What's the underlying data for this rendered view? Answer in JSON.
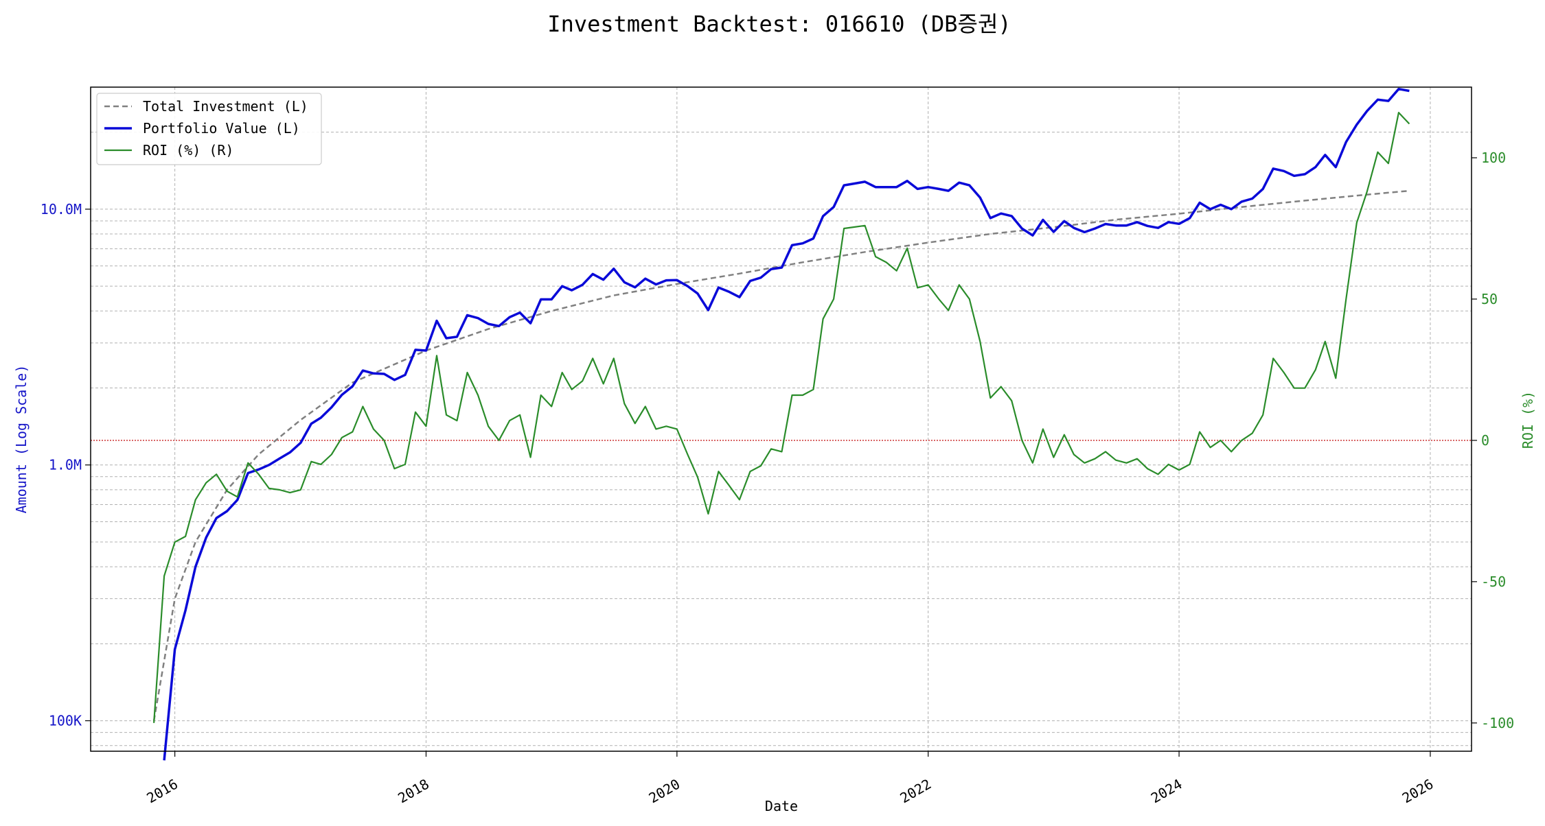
{
  "chart_data": {
    "type": "line",
    "title": "Investment Backtest: 016610 (DB증권)",
    "xlabel": "Date",
    "ylabel_left": "Amount (Log Scale)",
    "ylabel_right": "ROI (%)",
    "left_scale": "log",
    "left_ylim": [
      76000,
      30000000
    ],
    "right_ylim": [
      -110,
      125
    ],
    "xlim": [
      "2015-05-01",
      "2026-05-01"
    ],
    "x_ticks": [
      "2016",
      "2018",
      "2020",
      "2022",
      "2024",
      "2026"
    ],
    "left_ticks": [
      {
        "value": 100000,
        "label": "100K"
      },
      {
        "value": 1000000,
        "label": "1.0M"
      },
      {
        "value": 10000000,
        "label": "10.0M"
      }
    ],
    "right_ticks": [
      -100,
      -50,
      0,
      50,
      100
    ],
    "grid": true,
    "legend_position": "top-left",
    "reference_line": {
      "axis": "right",
      "value": 0,
      "style": "dotted",
      "color": "#cc3333"
    },
    "colors": {
      "total_investment": "#808080",
      "portfolio_value": "#0a0ad8",
      "roi": "#2a8c2a",
      "left_axis_text": "#1515c8",
      "right_axis_text": "#2a8c2a"
    },
    "series": [
      {
        "name": "Total Investment (L)",
        "axis": "left",
        "style": "dashed",
        "x": [
          "2015-11-01",
          "2016-01-01",
          "2016-03-01",
          "2016-06-01",
          "2016-09-01",
          "2017-01-01",
          "2017-06-01",
          "2018-01-01",
          "2018-07-01",
          "2019-01-01",
          "2019-07-01",
          "2020-01-01",
          "2020-07-01",
          "2021-01-01",
          "2021-07-01",
          "2022-01-01",
          "2022-07-01",
          "2023-01-01",
          "2023-07-01",
          "2024-01-01",
          "2024-07-01",
          "2025-01-01",
          "2025-07-01",
          "2025-11-01"
        ],
        "values": [
          100000,
          300000,
          500000,
          800000,
          1100000,
          1500000,
          2100000,
          2800000,
          3400000,
          4000000,
          4600000,
          5100000,
          5600000,
          6200000,
          6800000,
          7400000,
          8000000,
          8500000,
          9100000,
          9600000,
          10200000,
          10800000,
          11400000,
          11800000
        ]
      },
      {
        "name": "Portfolio Value (L)",
        "axis": "left",
        "style": "solid",
        "x": [
          "2015-12-01",
          "2016-01-01",
          "2016-02-01",
          "2016-03-01",
          "2016-04-01",
          "2016-05-01",
          "2016-06-01",
          "2016-07-01",
          "2016-08-01",
          "2016-09-01",
          "2016-10-01",
          "2016-11-01",
          "2016-12-01",
          "2017-01-01",
          "2017-02-01",
          "2017-03-01",
          "2017-04-01",
          "2017-05-01",
          "2017-06-01",
          "2017-07-01",
          "2017-08-01",
          "2017-09-01",
          "2017-10-01",
          "2017-11-01",
          "2017-12-01",
          "2018-01-01",
          "2018-02-01",
          "2018-03-01",
          "2018-04-01",
          "2018-05-01",
          "2018-06-01",
          "2018-07-01",
          "2018-08-01",
          "2018-09-01",
          "2018-10-01",
          "2018-11-01",
          "2018-12-01",
          "2019-01-01",
          "2019-02-01",
          "2019-03-01",
          "2019-04-01",
          "2019-05-01",
          "2019-06-01",
          "2019-07-01",
          "2019-08-01",
          "2019-09-01",
          "2019-10-01",
          "2019-11-01",
          "2019-12-01",
          "2020-01-01",
          "2020-02-01",
          "2020-03-01",
          "2020-04-01",
          "2020-05-01",
          "2020-06-01",
          "2020-07-01",
          "2020-08-01",
          "2020-09-01",
          "2020-10-01",
          "2020-11-01",
          "2020-12-01",
          "2021-01-01",
          "2021-02-01",
          "2021-03-01",
          "2021-04-01",
          "2021-05-01",
          "2021-06-01",
          "2021-07-01",
          "2021-08-01",
          "2021-09-01",
          "2021-10-01",
          "2021-11-01",
          "2021-12-01",
          "2022-01-01",
          "2022-02-01",
          "2022-03-01",
          "2022-04-01",
          "2022-05-01",
          "2022-06-01",
          "2022-07-01",
          "2022-08-01",
          "2022-09-01",
          "2022-10-01",
          "2022-11-01",
          "2022-12-01",
          "2023-01-01",
          "2023-02-01",
          "2023-03-01",
          "2023-04-01",
          "2023-05-01",
          "2023-06-01",
          "2023-07-01",
          "2023-08-01",
          "2023-09-01",
          "2023-10-01",
          "2023-11-01",
          "2023-12-01",
          "2024-01-01",
          "2024-02-01",
          "2024-03-01",
          "2024-04-01",
          "2024-05-01",
          "2024-06-01",
          "2024-07-01",
          "2024-08-01",
          "2024-09-01",
          "2024-10-01",
          "2024-11-01",
          "2024-12-01",
          "2025-01-01",
          "2025-02-01",
          "2025-03-01",
          "2025-04-01",
          "2025-05-01",
          "2025-06-01",
          "2025-07-01",
          "2025-08-01",
          "2025-09-01",
          "2025-10-01",
          "2025-11-01"
        ],
        "values": [
          70000,
          190000,
          270000,
          400000,
          520000,
          620000,
          660000,
          730000,
          930000,
          960000,
          1000000,
          1060000,
          1120000,
          1220000,
          1450000,
          1530000,
          1680000,
          1880000,
          2030000,
          2340000,
          2280000,
          2270000,
          2150000,
          2250000,
          2820000,
          2800000,
          3660000,
          3130000,
          3170000,
          3850000,
          3750000,
          3560000,
          3490000,
          3780000,
          3940000,
          3580000,
          4440000,
          4440000,
          5000000,
          4820000,
          5060000,
          5580000,
          5300000,
          5850000,
          5180000,
          4950000,
          5350000,
          5080000,
          5270000,
          5280000,
          5000000,
          4680000,
          4030000,
          4940000,
          4750000,
          4530000,
          5240000,
          5400000,
          5830000,
          5910000,
          7230000,
          7350000,
          7680000,
          9390000,
          10200000,
          12400000,
          12600000,
          12800000,
          12200000,
          12200000,
          12200000,
          12900000,
          12000000,
          12200000,
          12000000,
          11800000,
          12700000,
          12400000,
          11100000,
          9230000,
          9620000,
          9400000,
          8400000,
          7900000,
          9080000,
          8150000,
          8980000,
          8450000,
          8130000,
          8400000,
          8750000,
          8630000,
          8630000,
          8900000,
          8600000,
          8450000,
          8900000,
          8760000,
          9230000,
          10600000,
          10000000,
          10400000,
          10000000,
          10700000,
          11000000,
          12000000,
          14400000,
          14100000,
          13500000,
          13700000,
          14600000,
          16300000,
          14600000,
          18300000,
          21400000,
          24200000,
          26800000,
          26500000,
          29500000,
          29000000
        ]
      },
      {
        "name": "ROI (%) (R)",
        "axis": "right",
        "style": "solid",
        "x": [
          "2015-11-01",
          "2015-12-01",
          "2016-01-01",
          "2016-02-01",
          "2016-03-01",
          "2016-04-01",
          "2016-05-01",
          "2016-06-01",
          "2016-07-01",
          "2016-08-01",
          "2016-09-01",
          "2016-10-01",
          "2016-11-01",
          "2016-12-01",
          "2017-01-01",
          "2017-02-01",
          "2017-03-01",
          "2017-04-01",
          "2017-05-01",
          "2017-06-01",
          "2017-07-01",
          "2017-08-01",
          "2017-09-01",
          "2017-10-01",
          "2017-11-01",
          "2017-12-01",
          "2018-01-01",
          "2018-02-01",
          "2018-03-01",
          "2018-04-01",
          "2018-05-01",
          "2018-06-01",
          "2018-07-01",
          "2018-08-01",
          "2018-09-01",
          "2018-10-01",
          "2018-11-01",
          "2018-12-01",
          "2019-01-01",
          "2019-02-01",
          "2019-03-01",
          "2019-04-01",
          "2019-05-01",
          "2019-06-01",
          "2019-07-01",
          "2019-08-01",
          "2019-09-01",
          "2019-10-01",
          "2019-11-01",
          "2019-12-01",
          "2020-01-01",
          "2020-02-01",
          "2020-03-01",
          "2020-04-01",
          "2020-05-01",
          "2020-06-01",
          "2020-07-01",
          "2020-08-01",
          "2020-09-01",
          "2020-10-01",
          "2020-11-01",
          "2020-12-01",
          "2021-01-01",
          "2021-02-01",
          "2021-03-01",
          "2021-04-01",
          "2021-05-01",
          "2021-06-01",
          "2021-07-01",
          "2021-08-01",
          "2021-09-01",
          "2021-10-01",
          "2021-11-01",
          "2021-12-01",
          "2022-01-01",
          "2022-02-01",
          "2022-03-01",
          "2022-04-01",
          "2022-05-01",
          "2022-06-01",
          "2022-07-01",
          "2022-08-01",
          "2022-09-01",
          "2022-10-01",
          "2022-11-01",
          "2022-12-01",
          "2023-01-01",
          "2023-02-01",
          "2023-03-01",
          "2023-04-01",
          "2023-05-01",
          "2023-06-01",
          "2023-07-01",
          "2023-08-01",
          "2023-09-01",
          "2023-10-01",
          "2023-11-01",
          "2023-12-01",
          "2024-01-01",
          "2024-02-01",
          "2024-03-01",
          "2024-04-01",
          "2024-05-01",
          "2024-06-01",
          "2024-07-01",
          "2024-08-01",
          "2024-09-01",
          "2024-10-01",
          "2024-11-01",
          "2024-12-01",
          "2025-01-01",
          "2025-02-01",
          "2025-03-01",
          "2025-04-01",
          "2025-05-01",
          "2025-06-01",
          "2025-07-01",
          "2025-08-01",
          "2025-09-01",
          "2025-10-01",
          "2025-11-01"
        ],
        "values": [
          -100,
          -48,
          -36,
          -34,
          -21,
          -15,
          -12,
          -18,
          -20,
          -8,
          -12,
          -17,
          -17.5,
          -18.5,
          -17.5,
          -7.5,
          -8.5,
          -5,
          1,
          3,
          12,
          4,
          0,
          -10,
          -8.5,
          10,
          5,
          30,
          9,
          7,
          24,
          16,
          5,
          0,
          7,
          9,
          -6,
          16,
          12,
          24,
          18,
          21,
          29,
          20,
          29,
          13,
          6,
          12,
          4,
          5,
          4,
          -5,
          -13,
          -26,
          -11,
          -16,
          -21,
          -11,
          -9,
          -3,
          -4,
          16,
          16,
          18,
          43,
          50,
          75,
          75.5,
          76,
          65,
          63,
          60,
          68,
          54,
          55,
          50,
          46,
          55,
          50,
          35,
          15,
          19,
          14,
          0,
          -8,
          4,
          -6,
          2,
          -5,
          -8,
          -6.5,
          -4,
          -7,
          -8,
          -6.5,
          -10,
          -12,
          -8.5,
          -10.5,
          -8.5,
          3,
          -2.5,
          0,
          -4,
          0,
          2.5,
          9,
          29,
          24,
          18.5,
          18.5,
          25,
          35,
          22,
          50,
          77,
          88,
          102,
          98,
          116,
          112
        ]
      }
    ]
  }
}
